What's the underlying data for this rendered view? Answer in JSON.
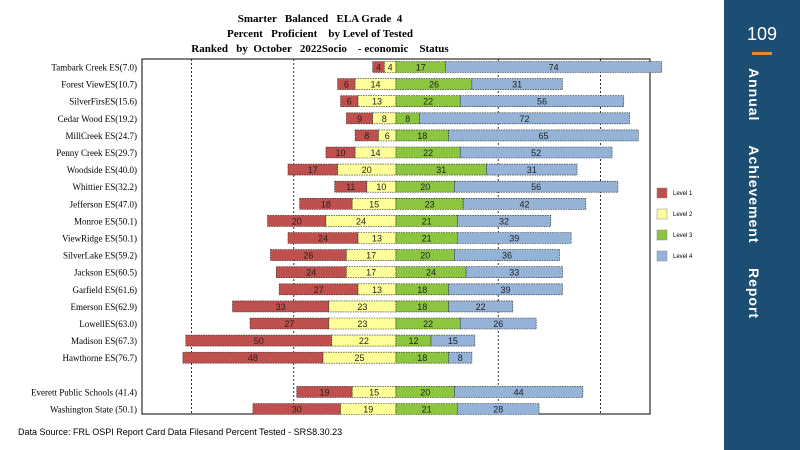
{
  "header": {
    "title_line1": "Smarter   Balanced   ELA Grade  4",
    "title_line2": "Percent   Proficient    by Level of Tested",
    "title_line3": "Ranked   by  October   2022Socio    - economic    Status"
  },
  "footer": {
    "source": "Data Source: FRL OSPI Report Card Data Filesand Percent  Tested - SRS8.30.23"
  },
  "sidebar": {
    "page_number": "109",
    "vertical_title": "Annual     Achievement     Report"
  },
  "colors": {
    "level1": "#c0504d",
    "level2": "#ffff99",
    "level3": "#8cc63f",
    "level4": "#95b3d7",
    "sidebar": "#1c4e74",
    "accent": "#e7862a"
  },
  "chart_data": {
    "type": "bar",
    "stacked": "diverging",
    "title": "Smarter   Balanced   ELA Grade  4 / Percent   Proficient    by Level of Tested / Ranked   by  October   2022Socio    - economic    Status",
    "categories": [
      "Tambark Creek ES(7.0)",
      "Forest ViewES(10.7)",
      "SilverFirsES(15.6)",
      "Cedar Wood ES(19.2)",
      "MillCreek ES(24.7)",
      "Penny Creek ES(29.7)",
      "Woodside ES(40.0)",
      "Whittier ES(32.2)",
      "Jefferson  ES(47.0)",
      "Monroe ES(50.1)",
      "ViewRidge ES(50.1)",
      "SilverLake ES(59.2)",
      "Jackson ES(60.5)",
      "Garfield ES(61.6)",
      "Emerson ES(62.9)",
      "LowellES(63.0)",
      "Madison ES(67.3)",
      "Hawthorne  ES(76.7)",
      "",
      "Everett Public Schools (41.4)",
      "Washington State (50.1)"
    ],
    "series": [
      {
        "name": "Level 1",
        "values": [
          4,
          6,
          6,
          9,
          8,
          10,
          17,
          11,
          18,
          20,
          24,
          26,
          24,
          27,
          33,
          27,
          50,
          48,
          null,
          19,
          30
        ]
      },
      {
        "name": "Level 2",
        "values": [
          4,
          14,
          13,
          8,
          6,
          14,
          20,
          10,
          15,
          24,
          13,
          17,
          17,
          13,
          23,
          23,
          22,
          25,
          null,
          15,
          19
        ]
      },
      {
        "name": "Level 3",
        "values": [
          17,
          26,
          22,
          8,
          18,
          22,
          31,
          20,
          23,
          21,
          21,
          20,
          24,
          18,
          18,
          22,
          12,
          18,
          null,
          20,
          21
        ]
      },
      {
        "name": "Level 4",
        "values": [
          74,
          31,
          56,
          72,
          65,
          52,
          31,
          56,
          42,
          32,
          39,
          36,
          33,
          39,
          22,
          26,
          15,
          8,
          null,
          44,
          28
        ]
      }
    ],
    "legend_position": "right",
    "grid": true
  }
}
